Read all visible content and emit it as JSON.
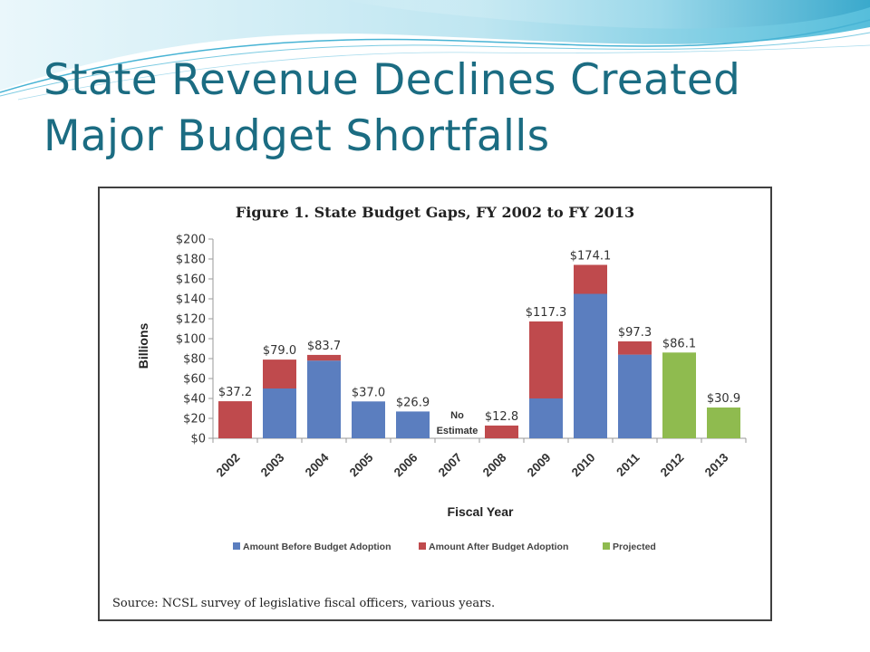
{
  "slide": {
    "title_line1": "State Revenue Declines Created",
    "title_line2": "Major Budget Shortfalls",
    "accent_color": "#1b6c82"
  },
  "chart_data": {
    "type": "bar",
    "stacked": true,
    "title": "Figure 1. State Budget Gaps, FY 2002 to FY 2013",
    "xlabel": "Fiscal Year",
    "ylabel": "Billions",
    "ylim": [
      0,
      200
    ],
    "yticks": [
      "$0",
      "$20",
      "$40",
      "$60",
      "$80",
      "$100",
      "$120",
      "$140",
      "$160",
      "$180",
      "$200"
    ],
    "ytick_values": [
      0,
      20,
      40,
      60,
      80,
      100,
      120,
      140,
      160,
      180,
      200
    ],
    "categories": [
      "2002",
      "2003",
      "2004",
      "2005",
      "2006",
      "2007",
      "2008",
      "2009",
      "2010",
      "2011",
      "2012",
      "2013"
    ],
    "series": [
      {
        "name": "Amount Before Budget Adoption",
        "color": "#5b7ebf",
        "values": [
          0,
          50,
          78,
          37,
          26.9,
          0,
          0,
          40,
          145,
          84,
          0,
          0
        ]
      },
      {
        "name": "Amount After Budget Adoption",
        "color": "#bf4a4d",
        "values": [
          37.2,
          29,
          5.7,
          0,
          0,
          0,
          12.8,
          77.3,
          29.1,
          13.3,
          0,
          0
        ]
      },
      {
        "name": "Projected",
        "color": "#8fbb4f",
        "values": [
          0,
          0,
          0,
          0,
          0,
          0,
          0,
          0,
          0,
          0,
          86.1,
          30.9
        ]
      }
    ],
    "totals": [
      37.2,
      79.0,
      83.7,
      37.0,
      26.9,
      null,
      12.8,
      117.3,
      174.1,
      97.3,
      86.1,
      30.9
    ],
    "data_labels": [
      "$37.2",
      "$79.0",
      "$83.7",
      "$37.0",
      "$26.9",
      "",
      "$12.8",
      "$117.3",
      "$174.1",
      "$97.3",
      "$86.1",
      "$30.9"
    ],
    "annotation": {
      "category": "2007",
      "line1": "No",
      "line2": "Estimate"
    },
    "legend_position": "bottom",
    "grid": false,
    "source": "Source: NCSL survey of legislative fiscal officers, various years."
  }
}
